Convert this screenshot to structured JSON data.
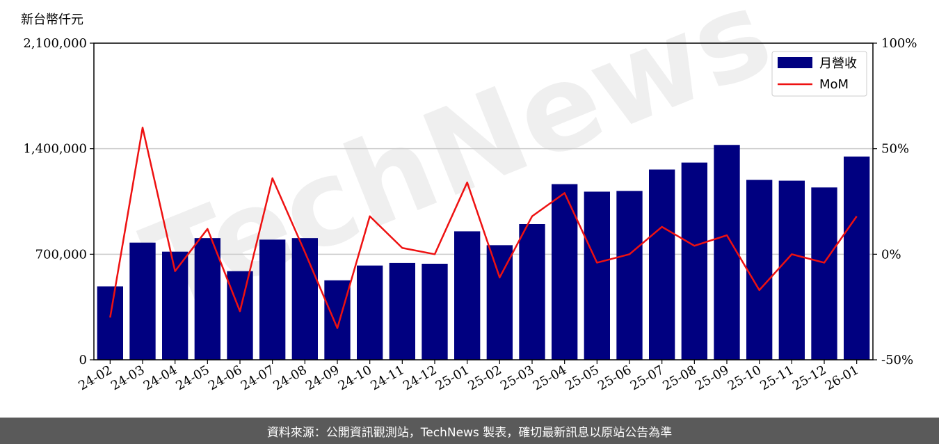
{
  "unit_label": "新台幣仟元",
  "watermark": "TechNews",
  "footer_text": "資料來源：公開資訊觀測站，TechNews 製表，確切最新訊息以原站公告為準",
  "colors": {
    "bar": "#000080",
    "line": "#ee1111",
    "grid": "#cccccc",
    "footer_bg": "#5a5a5a"
  },
  "chart_data": {
    "type": "bar",
    "categories": [
      "24-02",
      "24-03",
      "24-04",
      "24-05",
      "24-06",
      "24-07",
      "24-08",
      "24-09",
      "24-10",
      "24-11",
      "24-12",
      "25-01",
      "25-02",
      "25-03",
      "25-04",
      "25-05",
      "25-06",
      "25-07",
      "25-08",
      "25-09",
      "25-10",
      "25-11",
      "25-12",
      "26-01"
    ],
    "series": [
      {
        "name": "月營收",
        "type": "bar",
        "axis": "left",
        "values": [
          487000,
          777000,
          717000,
          807000,
          588000,
          797000,
          807000,
          527000,
          625000,
          642000,
          637000,
          852000,
          760000,
          900000,
          1165000,
          1115000,
          1120000,
          1262000,
          1308000,
          1425000,
          1193000,
          1188000,
          1143000,
          1348000
        ]
      },
      {
        "name": "MoM",
        "type": "line",
        "axis": "right",
        "values": [
          -30,
          60,
          -8,
          12,
          -27,
          36,
          1,
          -35,
          18,
          3,
          0,
          34,
          -11,
          18,
          29,
          -4,
          0,
          13,
          4,
          9,
          -17,
          0,
          -4,
          18
        ]
      }
    ],
    "y_left": {
      "ticks": [
        "0",
        "700,000",
        "1,400,000",
        "2,100,000"
      ],
      "lim": [
        0,
        2100000
      ]
    },
    "y_right": {
      "ticks": [
        "-50%",
        "0%",
        "50%",
        "100%"
      ],
      "lim": [
        -50,
        100
      ]
    },
    "grid": "horizontal",
    "legend": {
      "placement": "top-right",
      "entries": [
        "月營收",
        "MoM"
      ]
    }
  }
}
